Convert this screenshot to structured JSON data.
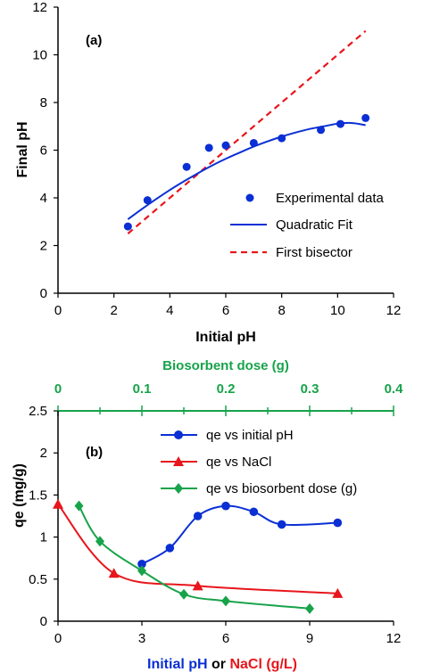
{
  "colors": {
    "blue": "#0a2fd4",
    "red": "#e8151b",
    "green": "#17a34a",
    "axis": "#000000",
    "top_axis": "#17a34a"
  },
  "chart_data": [
    {
      "type": "scatter",
      "panel_label": "(a)",
      "xlabel": "Initial pH",
      "ylabel": "Final pH",
      "xlim": [
        0,
        12
      ],
      "ylim": [
        0,
        12
      ],
      "x_ticks": [
        0,
        2,
        4,
        6,
        8,
        10,
        12
      ],
      "y_ticks": [
        0,
        2,
        4,
        6,
        8,
        10,
        12
      ],
      "legend_position": "right",
      "series": [
        {
          "name": "Experimental data",
          "kind": "markers",
          "color": "#0a2fd4",
          "x": [
            2.5,
            3.2,
            4.6,
            5.4,
            6.0,
            7.0,
            8.0,
            9.4,
            10.1,
            11.0
          ],
          "y": [
            2.8,
            3.9,
            5.3,
            6.1,
            6.2,
            6.3,
            6.5,
            6.85,
            7.1,
            7.35
          ]
        },
        {
          "name": "Quadratic Fit",
          "kind": "line",
          "color": "#0a2fd4",
          "x": [
            2.5,
            3.0,
            3.5,
            4.0,
            4.5,
            5.0,
            5.5,
            6.0,
            6.5,
            7.0,
            7.5,
            8.0,
            8.5,
            9.0,
            9.5,
            10.0,
            10.5,
            11.0
          ],
          "y": [
            3.1,
            3.53,
            3.94,
            4.33,
            4.69,
            5.03,
            5.35,
            5.64,
            5.9,
            6.15,
            6.37,
            6.57,
            6.74,
            6.89,
            7.0,
            7.11,
            7.14,
            7.05
          ]
        },
        {
          "name": "First bisector",
          "kind": "dashed",
          "color": "#e8151b",
          "x": [
            2.5,
            11.0
          ],
          "y": [
            2.5,
            11.0
          ]
        }
      ]
    },
    {
      "type": "line",
      "panel_label": "(b)",
      "xlabel_parts": [
        "Initial pH",
        " or ",
        "NaCl (g/L)"
      ],
      "ylabel": "qe (mg/g)",
      "top_xlabel": "Biosorbent dose (g)",
      "xlim": [
        0,
        12
      ],
      "ylim": [
        0,
        2.5
      ],
      "x_ticks": [
        0,
        3,
        6,
        9,
        12
      ],
      "y_ticks": [
        "0",
        "0.5",
        "1",
        "1.5",
        "2",
        "2.5"
      ],
      "top_xlim": [
        0,
        0.4
      ],
      "top_ticks": [
        "0",
        "0.1",
        "0.2",
        "0.3",
        "0.4"
      ],
      "legend_position": "top-right",
      "series": [
        {
          "name": "qe vs initial pH",
          "color": "#0a2fd4",
          "marker": "circle",
          "x": [
            3,
            4,
            5,
            6,
            7,
            8,
            10
          ],
          "y": [
            0.68,
            0.87,
            1.25,
            1.37,
            1.3,
            1.15,
            1.17
          ]
        },
        {
          "name": "qe vs NaCl",
          "color": "#e8151b",
          "marker": "triangle",
          "x": [
            0,
            2,
            5,
            10
          ],
          "y": [
            1.39,
            0.57,
            0.42,
            0.33
          ]
        },
        {
          "name": "qe vs biosorbent dose (g)",
          "color": "#17a34a",
          "marker": "diamond",
          "axis": "top",
          "x": [
            0.025,
            0.05,
            0.1,
            0.15,
            0.2,
            0.3
          ],
          "y": [
            1.37,
            0.95,
            0.6,
            0.32,
            0.24,
            0.15
          ]
        }
      ]
    }
  ]
}
